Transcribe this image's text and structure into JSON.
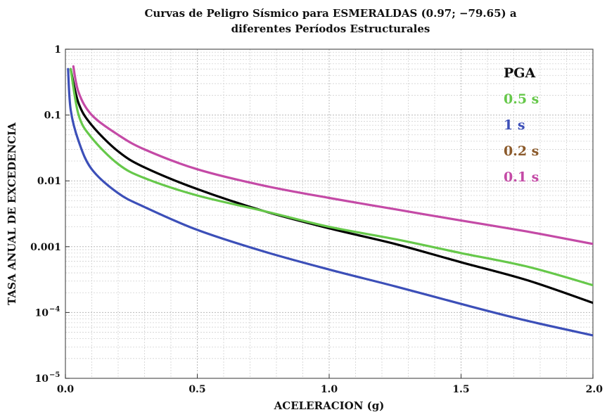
{
  "chart_data": {
    "type": "line",
    "title_line1": "Curvas de Peligro Sísmico para ESMERALDAS (0.97; −79.65) a",
    "title_line2": "diferentes Períodos Estructurales",
    "xlabel": "ACELERACION (g)",
    "ylabel": "TASA ANUAL DE EXCEDENCIA",
    "xlim": [
      0,
      2.0
    ],
    "ylim": [
      1e-05,
      1
    ],
    "yscale": "log",
    "grid": true,
    "legend_position": "top-right",
    "x_ticks": [
      {
        "value": 0.0,
        "label": "0.0"
      },
      {
        "value": 0.5,
        "label": "0.5"
      },
      {
        "value": 1.0,
        "label": "1.0"
      },
      {
        "value": 1.5,
        "label": "1.5"
      },
      {
        "value": 2.0,
        "label": "2.0"
      }
    ],
    "y_ticks": [
      {
        "value": 1,
        "label": "1"
      },
      {
        "value": 0.1,
        "label": "0.1"
      },
      {
        "value": 0.01,
        "label": "0.01"
      },
      {
        "value": 0.001,
        "label": "0.001"
      },
      {
        "value": 0.0001,
        "label": "10",
        "exp": "−4"
      },
      {
        "value": 1e-05,
        "label": "10",
        "exp": "−5"
      }
    ],
    "series": [
      {
        "name": "PGA",
        "color": "#000000",
        "x": [
          0.02,
          0.05,
          0.1,
          0.2,
          0.3,
          0.5,
          0.75,
          1.0,
          1.25,
          1.5,
          1.75,
          2.0
        ],
        "y": [
          0.5,
          0.15,
          0.07,
          0.028,
          0.016,
          0.0075,
          0.0035,
          0.0019,
          0.0011,
          0.00058,
          0.00031,
          0.00014
        ]
      },
      {
        "name": "0.5 s",
        "color": "#66c84a",
        "x": [
          0.02,
          0.05,
          0.1,
          0.2,
          0.3,
          0.5,
          0.75,
          1.0,
          1.25,
          1.5,
          1.75,
          2.0
        ],
        "y": [
          0.5,
          0.1,
          0.045,
          0.018,
          0.011,
          0.006,
          0.0035,
          0.002,
          0.0013,
          0.0008,
          0.0005,
          0.00026
        ]
      },
      {
        "name": "1 s",
        "color": "#3c4fb8",
        "x": [
          0.01,
          0.02,
          0.05,
          0.1,
          0.2,
          0.3,
          0.5,
          0.75,
          1.0,
          1.25,
          1.5,
          1.75,
          2.0
        ],
        "y": [
          0.5,
          0.12,
          0.04,
          0.015,
          0.0065,
          0.004,
          0.0018,
          0.00085,
          0.00045,
          0.00025,
          0.000135,
          7.5e-05,
          4.5e-05
        ]
      },
      {
        "name": "0.2 s",
        "color": "#8b5a2b",
        "x": [
          0.02,
          0.05,
          0.1,
          0.2,
          0.3,
          0.5,
          0.75,
          1.0,
          1.25,
          1.5,
          1.75,
          2.0
        ],
        "y": [
          0.5,
          0.16,
          0.075,
          0.03,
          0.017,
          0.008,
          0.0037,
          0.002,
          0.0012,
          0.0007,
          0.00042,
          0.00025
        ],
        "draw": false
      },
      {
        "name": "0.1 s",
        "color": "#c44aa6",
        "x": [
          0.03,
          0.05,
          0.1,
          0.2,
          0.3,
          0.5,
          0.75,
          1.0,
          1.25,
          1.5,
          1.75,
          2.0
        ],
        "y": [
          0.55,
          0.22,
          0.1,
          0.05,
          0.03,
          0.015,
          0.0085,
          0.0055,
          0.0037,
          0.0025,
          0.0017,
          0.0011
        ]
      }
    ],
    "legend": [
      {
        "label": "PGA",
        "color": "#111111"
      },
      {
        "label": "0.5 s",
        "color": "#66c84a"
      },
      {
        "label": "1 s",
        "color": "#3c4fb8"
      },
      {
        "label": "0.2 s",
        "color": "#8b5a2b"
      },
      {
        "label": "0.1 s",
        "color": "#c44aa6"
      }
    ]
  }
}
